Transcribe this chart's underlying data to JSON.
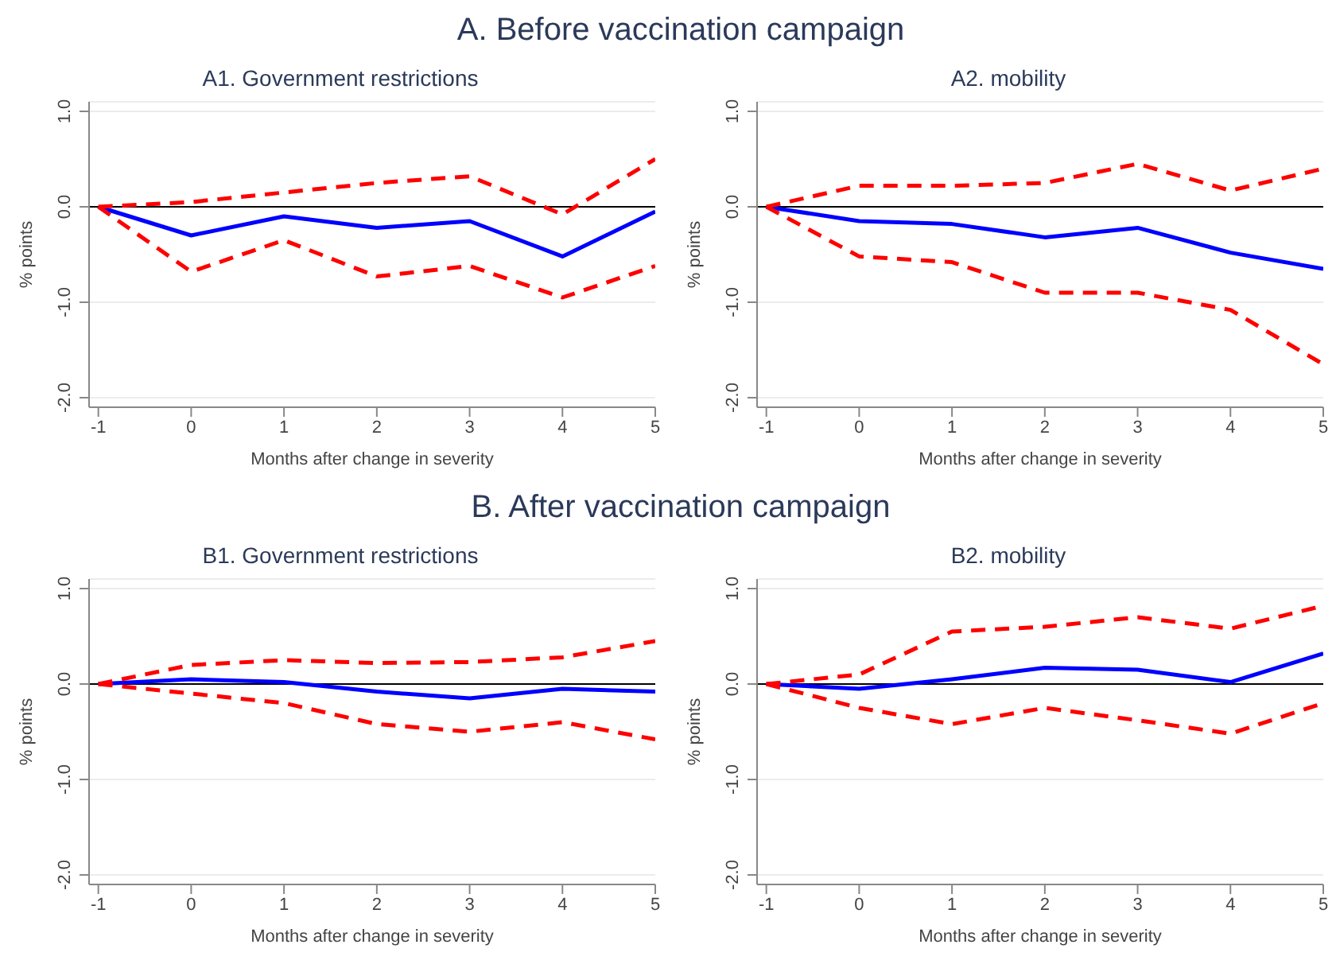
{
  "chart_data": [
    {
      "type": "line",
      "title": "A1. Government restrictions",
      "annotations": [
        "A. Before vaccination campaign"
      ],
      "xlabel": "Months after change in severity",
      "ylabel": "% points",
      "x": [
        -1,
        0,
        1,
        2,
        3,
        4,
        5
      ],
      "xlim": [
        -1.1,
        5
      ],
      "xticks": [
        -1,
        0,
        1,
        2,
        3,
        4,
        5
      ],
      "ylim": [
        -2.1,
        1.1
      ],
      "yticks": [
        {
          "value": -2,
          "label": "-2.0"
        },
        {
          "value": -1,
          "label": "-1.0"
        },
        {
          "value": 0,
          "label": "0.0"
        },
        {
          "value": 1,
          "label": "1.0"
        }
      ],
      "grid": "y",
      "legend": false,
      "ref_lines": [
        {
          "axis": "y",
          "value": 0,
          "color": "#000000"
        }
      ],
      "series": [
        {
          "color": "#0000ff",
          "line_style": "solid",
          "values": [
            0,
            -0.3,
            -0.1,
            -0.22,
            -0.15,
            -0.52,
            -0.05
          ]
        },
        {
          "color": "#ff0000",
          "line_style": "dashed",
          "values": [
            0,
            0.05,
            0.15,
            0.25,
            0.32,
            -0.08,
            0.5
          ]
        },
        {
          "color": "#ff0000",
          "line_style": "dashed",
          "values": [
            0,
            -0.68,
            -0.35,
            -0.73,
            -0.62,
            -0.95,
            -0.62
          ]
        }
      ]
    },
    {
      "type": "line",
      "title": "A2. mobility",
      "xlabel": "Months after change in severity",
      "ylabel": "% points",
      "x": [
        -1,
        0,
        1,
        2,
        3,
        4,
        5
      ],
      "xlim": [
        -1.1,
        5
      ],
      "xticks": [
        -1,
        0,
        1,
        2,
        3,
        4,
        5
      ],
      "ylim": [
        -2.1,
        1.1
      ],
      "yticks": [
        {
          "value": -2,
          "label": "-2.0"
        },
        {
          "value": -1,
          "label": "-1.0"
        },
        {
          "value": 0,
          "label": "0.0"
        },
        {
          "value": 1,
          "label": "1.0"
        }
      ],
      "grid": "y",
      "legend": false,
      "ref_lines": [
        {
          "axis": "y",
          "value": 0,
          "color": "#000000"
        }
      ],
      "series": [
        {
          "color": "#0000ff",
          "line_style": "solid",
          "values": [
            0,
            -0.15,
            -0.18,
            -0.32,
            -0.22,
            -0.48,
            -0.65
          ]
        },
        {
          "color": "#ff0000",
          "line_style": "dashed",
          "values": [
            0,
            0.22,
            0.22,
            0.25,
            0.45,
            0.17,
            0.4
          ]
        },
        {
          "color": "#ff0000",
          "line_style": "dashed",
          "values": [
            0,
            -0.52,
            -0.58,
            -0.9,
            -0.9,
            -1.08,
            -1.65
          ]
        }
      ]
    },
    {
      "type": "line",
      "title": "B1. Government restrictions",
      "annotations": [
        "B. After vaccination campaign"
      ],
      "xlabel": "Months after change in severity",
      "ylabel": "% points",
      "x": [
        -1,
        0,
        1,
        2,
        3,
        4,
        5
      ],
      "xlim": [
        -1.1,
        5
      ],
      "xticks": [
        -1,
        0,
        1,
        2,
        3,
        4,
        5
      ],
      "ylim": [
        -2.1,
        1.1
      ],
      "yticks": [
        {
          "value": -2,
          "label": "-2.0"
        },
        {
          "value": -1,
          "label": "-1.0"
        },
        {
          "value": 0,
          "label": "0.0"
        },
        {
          "value": 1,
          "label": "1.0"
        }
      ],
      "grid": "y",
      "legend": false,
      "ref_lines": [
        {
          "axis": "y",
          "value": 0,
          "color": "#000000"
        }
      ],
      "series": [
        {
          "color": "#0000ff",
          "line_style": "solid",
          "values": [
            0,
            0.05,
            0.02,
            -0.08,
            -0.15,
            -0.05,
            -0.08
          ]
        },
        {
          "color": "#ff0000",
          "line_style": "dashed",
          "values": [
            0,
            0.2,
            0.25,
            0.22,
            0.23,
            0.28,
            0.45
          ]
        },
        {
          "color": "#ff0000",
          "line_style": "dashed",
          "values": [
            0,
            -0.1,
            -0.2,
            -0.42,
            -0.5,
            -0.4,
            -0.58
          ]
        }
      ]
    },
    {
      "type": "line",
      "title": "B2. mobility",
      "xlabel": "Months after change in severity",
      "ylabel": "% points",
      "x": [
        -1,
        0,
        1,
        2,
        3,
        4,
        5
      ],
      "xlim": [
        -1.1,
        5
      ],
      "xticks": [
        -1,
        0,
        1,
        2,
        3,
        4,
        5
      ],
      "ylim": [
        -2.1,
        1.1
      ],
      "yticks": [
        {
          "value": -2,
          "label": "-2.0"
        },
        {
          "value": -1,
          "label": "-1.0"
        },
        {
          "value": 0,
          "label": "0.0"
        },
        {
          "value": 1,
          "label": "1.0"
        }
      ],
      "grid": "y",
      "legend": false,
      "ref_lines": [
        {
          "axis": "y",
          "value": 0,
          "color": "#000000"
        }
      ],
      "series": [
        {
          "color": "#0000ff",
          "line_style": "solid",
          "values": [
            0,
            -0.05,
            0.05,
            0.17,
            0.15,
            0.02,
            0.32
          ]
        },
        {
          "color": "#ff0000",
          "line_style": "dashed",
          "values": [
            0,
            0.1,
            0.55,
            0.6,
            0.7,
            0.58,
            0.82
          ]
        },
        {
          "color": "#ff0000",
          "line_style": "dashed",
          "values": [
            0,
            -0.25,
            -0.42,
            -0.25,
            -0.38,
            -0.52,
            -0.2
          ]
        }
      ]
    }
  ]
}
